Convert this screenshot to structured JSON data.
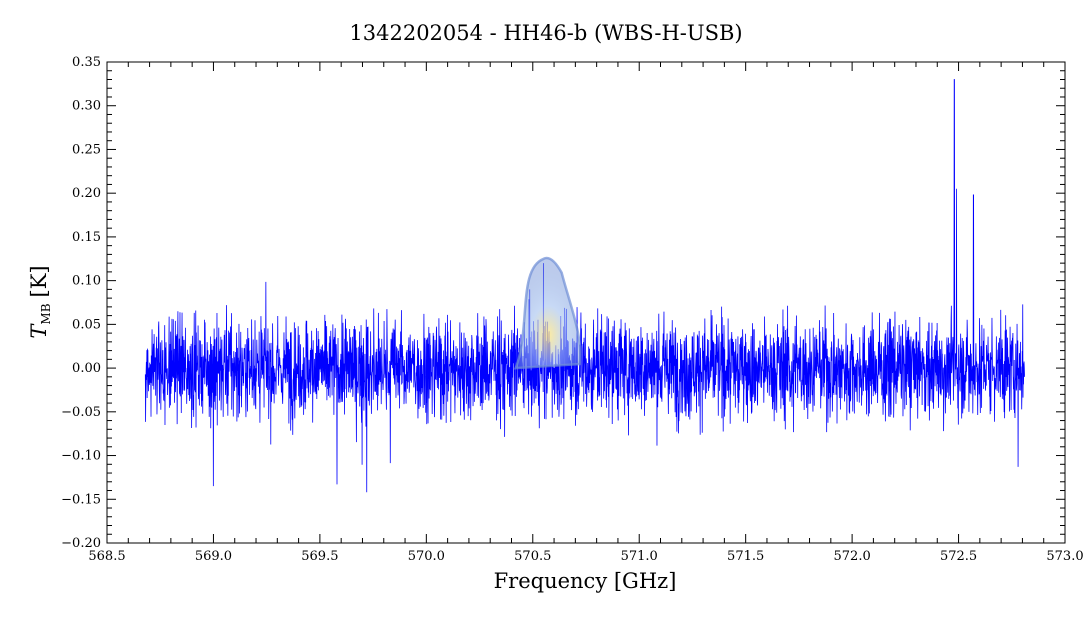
{
  "chart_data": {
    "type": "line",
    "title": "1342202054 - HH46-b (WBS-H-USB)",
    "xlabel": "Frequency [GHz]",
    "ylabel_main": "T",
    "ylabel_sub": "MB",
    "ylabel_unit": "[K]",
    "xlim": [
      568.5,
      573.0
    ],
    "ylim": [
      -0.2,
      0.35
    ],
    "x_ticks": [
      "568.5",
      "569.0",
      "569.5",
      "570.0",
      "570.5",
      "571.0",
      "571.5",
      "572.0",
      "572.5",
      "573.0"
    ],
    "y_ticks": [
      "−0.20",
      "−0.15",
      "−0.10",
      "−0.05",
      "0.00",
      "0.05",
      "0.10",
      "0.15",
      "0.20",
      "0.25",
      "0.30",
      "0.35"
    ],
    "grid": false,
    "series": [
      {
        "color": "#0000ff",
        "x_range": [
          568.68,
          572.81
        ],
        "noise_rms": 0.028,
        "spikes": [
          {
            "x": 569.0,
            "y": 0.1
          },
          {
            "x": 569.0,
            "y": -0.135
          },
          {
            "x": 569.58,
            "y": -0.133
          },
          {
            "x": 569.72,
            "y": -0.142
          },
          {
            "x": 570.55,
            "y": 0.12
          },
          {
            "x": 572.48,
            "y": 0.33
          },
          {
            "x": 572.49,
            "y": 0.205
          },
          {
            "x": 572.57,
            "y": 0.198
          },
          {
            "x": 572.78,
            "y": -0.113
          }
        ]
      }
    ],
    "highlight": {
      "x_center": 570.57,
      "x_left": 570.42,
      "x_right": 570.72,
      "y_peak": 0.125,
      "color": "#6f8fd6"
    }
  }
}
